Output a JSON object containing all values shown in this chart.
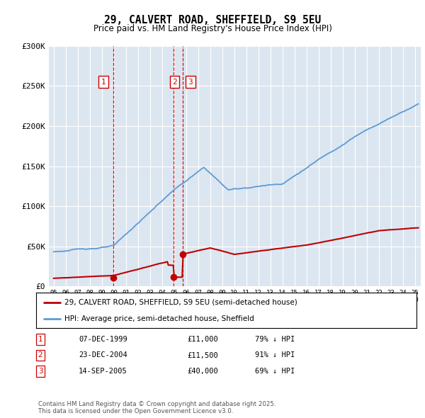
{
  "title": "29, CALVERT ROAD, SHEFFIELD, S9 5EU",
  "subtitle": "Price paid vs. HM Land Registry's House Price Index (HPI)",
  "ylim": [
    0,
    300000
  ],
  "yticks": [
    0,
    50000,
    100000,
    150000,
    200000,
    250000,
    300000
  ],
  "ytick_labels": [
    "£0",
    "£50K",
    "£100K",
    "£150K",
    "£200K",
    "£250K",
    "£300K"
  ],
  "xlim_start": 1994.6,
  "xlim_end": 2025.5,
  "transactions": [
    {
      "num": 1,
      "year": 1999.93,
      "price": 11000,
      "label": "07-DEC-1999",
      "price_str": "£11,000",
      "pct": "79% ↓ HPI"
    },
    {
      "num": 2,
      "year": 2004.98,
      "price": 11500,
      "label": "23-DEC-2004",
      "price_str": "£11,500",
      "pct": "91% ↓ HPI"
    },
    {
      "num": 3,
      "year": 2005.71,
      "price": 40000,
      "label": "14-SEP-2005",
      "price_str": "£40,000",
      "pct": "69% ↓ HPI"
    }
  ],
  "hpi_color": "#5b9bd5",
  "price_color": "#c00000",
  "vline_color": "#cc0000",
  "box_color": "#cc0000",
  "bg_plot_color": "#dce6f1",
  "legend_label_red": "29, CALVERT ROAD, SHEFFIELD, S9 5EU (semi-detached house)",
  "legend_label_blue": "HPI: Average price, semi-detached house, Sheffield",
  "footer": "Contains HM Land Registry data © Crown copyright and database right 2025.\nThis data is licensed under the Open Government Licence v3.0.",
  "background_color": "#ffffff",
  "grid_color": "#ffffff"
}
